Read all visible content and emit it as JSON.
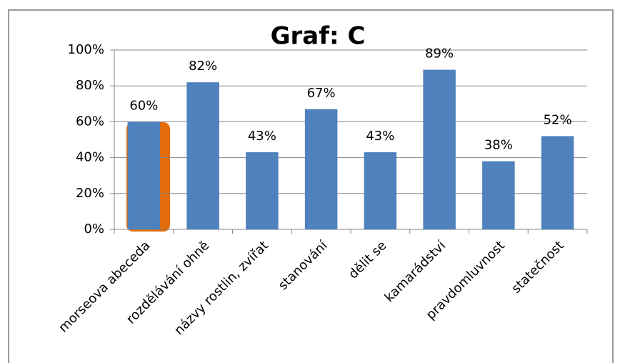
{
  "chart_data": {
    "type": "bar",
    "title": "Graf: C",
    "categories": [
      "morseova abeceda",
      "rozdělávání ohně",
      "názvy rostlin, zvířat",
      "stanování",
      "dělit se",
      "kamarádství",
      "pravdomluvnost",
      "statečnost"
    ],
    "values": [
      60,
      82,
      43,
      67,
      43,
      89,
      38,
      52
    ],
    "value_labels": [
      "60%",
      "82%",
      "43%",
      "67%",
      "43%",
      "89%",
      "38%",
      "52%"
    ],
    "color": "#4f81bd",
    "ylim": [
      0,
      100
    ],
    "yticks": [
      {
        "value": 0,
        "label": "0%"
      },
      {
        "value": 20,
        "label": "20%"
      },
      {
        "value": 40,
        "label": "40%"
      },
      {
        "value": 60,
        "label": "60%"
      },
      {
        "value": 80,
        "label": "80%"
      },
      {
        "value": 100,
        "label": "100%"
      }
    ],
    "grid": true
  }
}
